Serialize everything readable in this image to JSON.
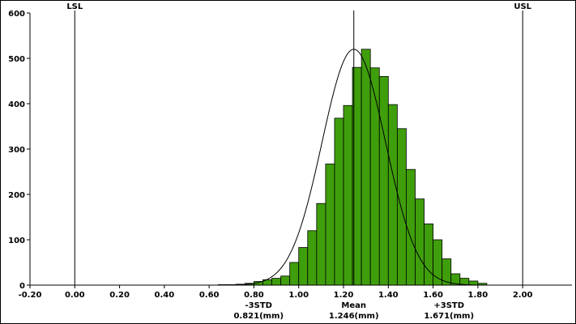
{
  "chart_data": {
    "type": "bar",
    "title": "",
    "xlabel": "",
    "ylabel": "",
    "xlim": [
      -0.2,
      2.22
    ],
    "ylim": [
      0,
      600
    ],
    "x_ticks": [
      -0.2,
      0.0,
      0.2,
      0.4,
      0.6,
      0.8,
      1.0,
      1.2,
      1.4,
      1.6,
      1.8,
      2.0
    ],
    "x_tick_labels": [
      "-0.20",
      "0.00",
      "0.20",
      "0.40",
      "0.60",
      "0.80",
      "1.00",
      "1.20",
      "1.40",
      "1.60",
      "1.80",
      "2.00"
    ],
    "y_ticks": [
      0,
      100,
      200,
      300,
      400,
      500,
      600
    ],
    "y_tick_labels": [
      "0",
      "100",
      "200",
      "300",
      "400",
      "500",
      "600"
    ],
    "bin_width": 0.04,
    "bins": [
      {
        "x": 0.66,
        "count": 1
      },
      {
        "x": 0.7,
        "count": 1
      },
      {
        "x": 0.74,
        "count": 2
      },
      {
        "x": 0.78,
        "count": 4
      },
      {
        "x": 0.82,
        "count": 8
      },
      {
        "x": 0.86,
        "count": 12
      },
      {
        "x": 0.9,
        "count": 15
      },
      {
        "x": 0.94,
        "count": 20
      },
      {
        "x": 0.98,
        "count": 50
      },
      {
        "x": 1.02,
        "count": 83
      },
      {
        "x": 1.06,
        "count": 120
      },
      {
        "x": 1.1,
        "count": 180
      },
      {
        "x": 1.14,
        "count": 267
      },
      {
        "x": 1.18,
        "count": 368
      },
      {
        "x": 1.22,
        "count": 396
      },
      {
        "x": 1.26,
        "count": 480
      },
      {
        "x": 1.3,
        "count": 520
      },
      {
        "x": 1.34,
        "count": 479
      },
      {
        "x": 1.38,
        "count": 460
      },
      {
        "x": 1.42,
        "count": 398
      },
      {
        "x": 1.46,
        "count": 345
      },
      {
        "x": 1.5,
        "count": 255
      },
      {
        "x": 1.54,
        "count": 190
      },
      {
        "x": 1.58,
        "count": 135
      },
      {
        "x": 1.62,
        "count": 100
      },
      {
        "x": 1.66,
        "count": 58
      },
      {
        "x": 1.7,
        "count": 25
      },
      {
        "x": 1.74,
        "count": 15
      },
      {
        "x": 1.78,
        "count": 9
      },
      {
        "x": 1.82,
        "count": 4
      }
    ],
    "fit_curve": {
      "type": "normal",
      "mean": 1.246,
      "std": 0.1417,
      "peak": 520
    },
    "bar_color": "#3f9e0b",
    "bar_edge_color": "#000000",
    "grid": false,
    "legend": "none",
    "vertical_lines": [
      {
        "id": "lsl",
        "label": "LSL",
        "x": 0.0,
        "label_position": "top"
      },
      {
        "id": "usl",
        "label": "USL",
        "x": 2.0,
        "label_position": "top"
      },
      {
        "id": "mean",
        "label": "Mean",
        "value_text": "1.246(mm)",
        "x": 1.246,
        "label_position": "bottom"
      }
    ],
    "annotations": [
      {
        "id": "minus3std",
        "label": "-3STD",
        "value_text": "0.821(mm)",
        "x": 0.821
      },
      {
        "id": "plus3std",
        "label": "+3STD",
        "value_text": "1.671(mm)",
        "x": 1.671
      }
    ]
  }
}
